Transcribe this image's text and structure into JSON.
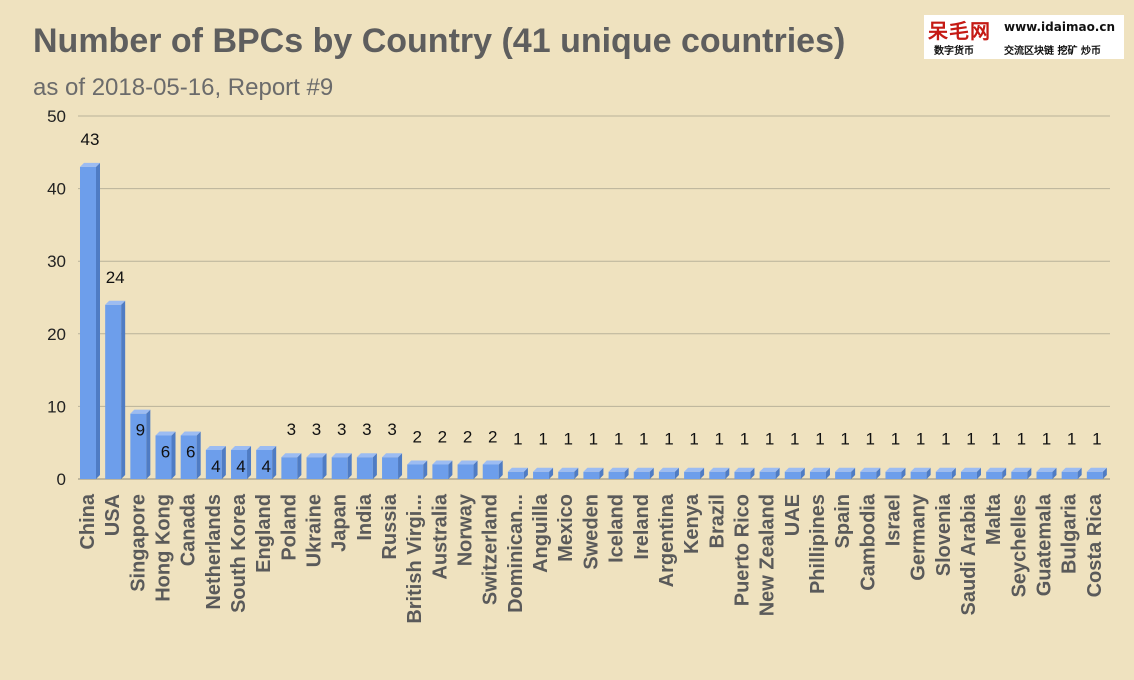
{
  "chart_data": {
    "type": "bar",
    "title": "Number of BPCs by Country (41 unique countries)",
    "subtitle": "as of 2018-05-16, Report #9",
    "categories": [
      "China",
      "USA",
      "Singapore",
      "Hong Kong",
      "Canada",
      "Netherlands",
      "South Korea",
      "England",
      "Poland",
      "Ukraine",
      "Japan",
      "India",
      "Russia",
      "British Virgi...",
      "Australia",
      "Norway",
      "Switzerland",
      "Dominican...",
      "Anguilla",
      "Mexico",
      "Sweden",
      "Iceland",
      "Ireland",
      "Argentina",
      "Kenya",
      "Brazil",
      "Puerto Rico",
      "New Zealand",
      "UAE",
      "Phillipines",
      "Spain",
      "Cambodia",
      "Israel",
      "Germany",
      "Slovenia",
      "Saudi Arabia",
      "Malta",
      "Seychelles",
      "Guatemala",
      "Bulgaria",
      "Costa Rica"
    ],
    "values": [
      43,
      24,
      9,
      6,
      6,
      4,
      4,
      4,
      3,
      3,
      3,
      3,
      3,
      2,
      2,
      2,
      2,
      1,
      1,
      1,
      1,
      1,
      1,
      1,
      1,
      1,
      1,
      1,
      1,
      1,
      1,
      1,
      1,
      1,
      1,
      1,
      1,
      1,
      1,
      1,
      1
    ],
    "ylim": [
      0,
      50
    ],
    "yticks": [
      0,
      10,
      20,
      30,
      40,
      50
    ],
    "grid": true,
    "bar_color": "#6d9eeb",
    "xlabel": "",
    "ylabel": ""
  },
  "watermark": {
    "logo": "呆毛网",
    "logo_sub": "数字货币",
    "url": "www.idaimao.cn",
    "tagline": "交流区块链 挖矿 炒币"
  }
}
